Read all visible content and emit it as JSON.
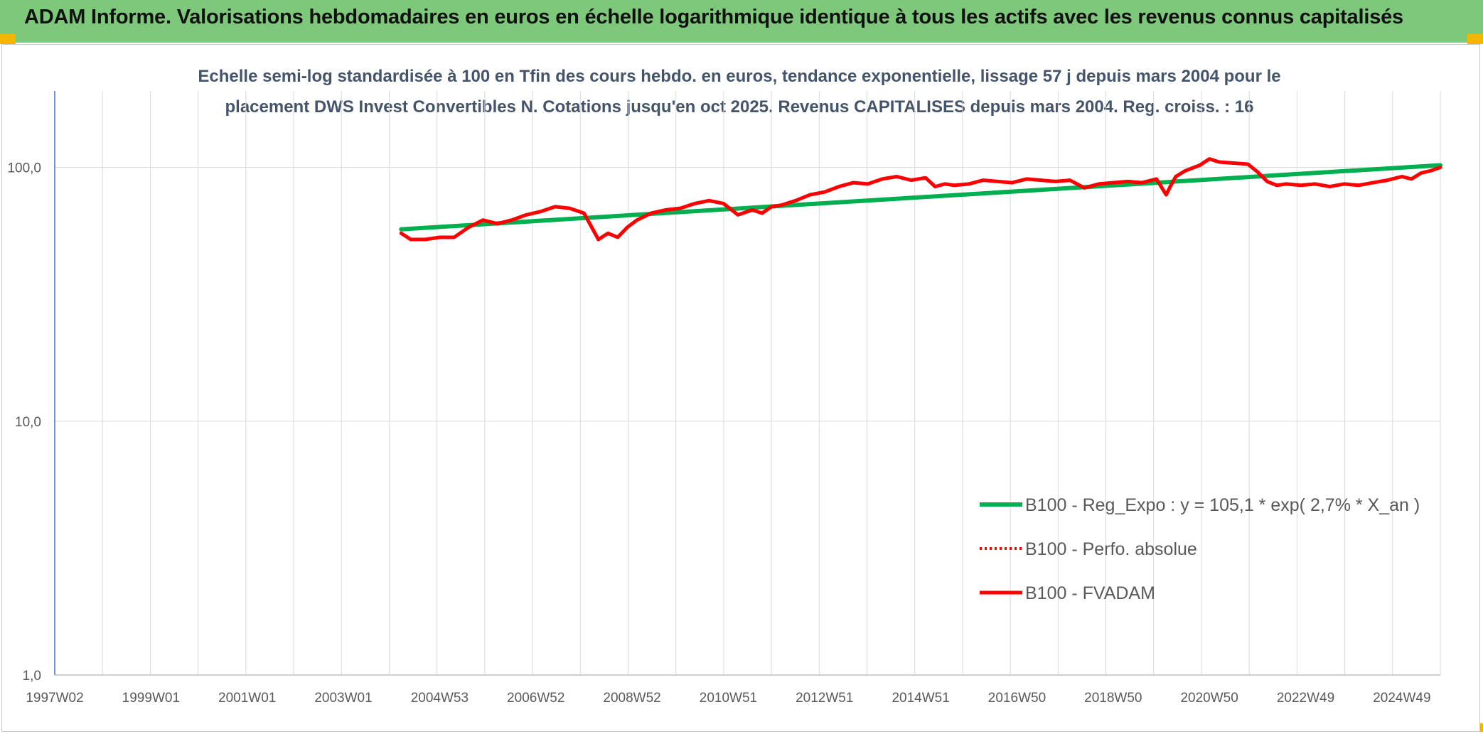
{
  "header": {
    "title": "ADAM Informe. Valorisations hebdomadaires en euros en échelle logarithmique identique à tous les actifs avec les revenus connus capitalisés"
  },
  "colors": {
    "banner": "#7dc87a",
    "corner_accent": "#f2b705",
    "regression": "#00b050",
    "fvadam": "#ff0000",
    "perfo": "#ff0000",
    "axis": "#4472c4",
    "grid": "#d9d9d9"
  },
  "chart_data": {
    "type": "line",
    "subtitle_lines": [
      "Echelle semi-log standardisée à 100 en Tfin des cours hebdo. en euros, tendance exponentielle, lissage 57 j depuis mars 2004 pour le",
      "placement DWS Invest Convertibles N. Cotations jusqu'en oct 2025. Revenus CAPITALISES depuis mars 2004. Reg. croiss. : 16"
    ],
    "y_scale": "log",
    "ylim": [
      1,
      200
    ],
    "y_ticks": [
      {
        "value": 1,
        "label": "1,0"
      },
      {
        "value": 10,
        "label": "10,0"
      },
      {
        "value": 100,
        "label": "100,0"
      }
    ],
    "xlim": [
      1997.0,
      2025.8
    ],
    "x_ticks": [
      {
        "x": 1997.0,
        "label": "1997W02"
      },
      {
        "x": 1999.0,
        "label": "1999W01"
      },
      {
        "x": 2001.0,
        "label": "2001W01"
      },
      {
        "x": 2003.0,
        "label": "2003W01"
      },
      {
        "x": 2005.0,
        "label": "2004W53"
      },
      {
        "x": 2007.0,
        "label": "2006W52"
      },
      {
        "x": 2009.0,
        "label": "2008W52"
      },
      {
        "x": 2011.0,
        "label": "2010W51"
      },
      {
        "x": 2013.0,
        "label": "2012W51"
      },
      {
        "x": 2015.0,
        "label": "2014W51"
      },
      {
        "x": 2017.0,
        "label": "2016W50"
      },
      {
        "x": 2019.0,
        "label": "2018W50"
      },
      {
        "x": 2021.0,
        "label": "2020W50"
      },
      {
        "x": 2023.0,
        "label": "2022W49"
      },
      {
        "x": 2025.0,
        "label": "2024W49"
      }
    ],
    "legend_position": "bottom-right",
    "series": [
      {
        "name": "B100 - Reg_Expo : y = 105,1 * exp( 2,7% *  X_an )",
        "style": "solid-green",
        "x": [
          2004.2,
          2025.8
        ],
        "y": [
          57,
          102
        ]
      },
      {
        "name": "B100 - Perfo. absolue",
        "style": "dotted-red",
        "x": [],
        "y": []
      },
      {
        "name": "B100 - FVADAM",
        "style": "solid-red",
        "x": [
          2004.2,
          2004.4,
          2004.7,
          2005.0,
          2005.3,
          2005.6,
          2005.9,
          2006.2,
          2006.5,
          2006.8,
          2007.1,
          2007.4,
          2007.7,
          2008.0,
          2008.3,
          2008.5,
          2008.7,
          2008.9,
          2009.1,
          2009.4,
          2009.7,
          2010.0,
          2010.3,
          2010.6,
          2010.9,
          2011.2,
          2011.5,
          2011.7,
          2011.9,
          2012.1,
          2012.4,
          2012.7,
          2013.0,
          2013.3,
          2013.6,
          2013.9,
          2014.2,
          2014.5,
          2014.8,
          2015.1,
          2015.3,
          2015.5,
          2015.7,
          2016.0,
          2016.3,
          2016.6,
          2016.9,
          2017.2,
          2017.5,
          2017.8,
          2018.1,
          2018.4,
          2018.7,
          2019.0,
          2019.3,
          2019.6,
          2019.9,
          2020.1,
          2020.2,
          2020.3,
          2020.5,
          2020.8,
          2021.0,
          2021.2,
          2021.5,
          2021.8,
          2022.0,
          2022.2,
          2022.4,
          2022.6,
          2022.9,
          2023.2,
          2023.5,
          2023.8,
          2024.1,
          2024.4,
          2024.7,
          2025.0,
          2025.2,
          2025.4,
          2025.6,
          2025.8
        ],
        "y": [
          55,
          52,
          52,
          53,
          53,
          58,
          62,
          60,
          62,
          65,
          67,
          70,
          69,
          66,
          52,
          55,
          53,
          58,
          62,
          66,
          68,
          69,
          72,
          74,
          72,
          65,
          68,
          66,
          70,
          71,
          74,
          78,
          80,
          84,
          87,
          86,
          90,
          92,
          89,
          91,
          84,
          86,
          85,
          86,
          89,
          88,
          87,
          90,
          89,
          88,
          89,
          83,
          86,
          87,
          88,
          87,
          90,
          78,
          85,
          92,
          97,
          102,
          108,
          105,
          104,
          103,
          96,
          88,
          85,
          86,
          85,
          86,
          84,
          86,
          85,
          87,
          89,
          92,
          90,
          95,
          97,
          100
        ]
      }
    ]
  }
}
